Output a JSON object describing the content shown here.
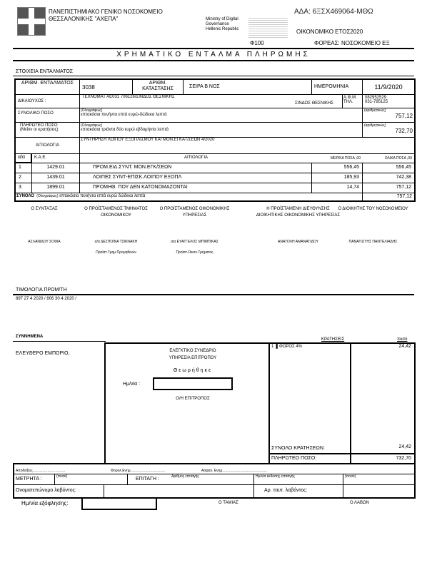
{
  "header": {
    "org_line1": "ΠΑΝΕΠΙΣΤΗΜΙΑΚΟ ΓΕΝΙΚΟ ΝΟΣΟΚΟΜΕΙΟ",
    "org_line2": "ΘΕΣΣΑΛΟΝΙΚΗΣ \"ΑΧΕΠΑ\"",
    "ministry": [
      "Ministry of Digital",
      "Governance",
      "Hellenic Republic"
    ],
    "ada": "ΑΔΑ: 6ΞΣΧ469064-ΜΘΩ",
    "fiscal_year": "ΟΙΚΟΝΟΜΙΚΟ ΕΤΟΣ2020",
    "phi": "Φ100",
    "agency": "ΦΟΡΕΑΣ: ΝΟΣΟΚΟΜΕΙΟ ΕΞ",
    "title": "ΧΡΗΜΑΤΙΚΟ ΕΝΤΑΛΜΑ ΠΛΗΡΩΜΗΣ",
    "section": "ΣΤΟΙΧΕΙΑ ΕΝΤΑΛΜΑΤΟΣ"
  },
  "order": {
    "num_label": "ΑΡΙΘΜ. ΕΝΤΑΛΜΑΤΟΣ",
    "num": "3038",
    "state_label": "ΑΡΙΘΜ. ΚΑΤΑΣΤΑΣΗΣ",
    "series": "ΣΕΙΡΑ Β ΝΟΣ",
    "date_label": "ΗΜΕΡΟΜΗΝΙΑ",
    "date": "11/9/2020",
    "beneficiary_label": "ΔΙΚΑΙΟΥΧΟΣ :",
    "beneficiary": "ΤΕΧΝΟΜΑΤ ΑΕ031 706126/ΣΙΝΔΟΣ ΘΕΣΝΙΚΗΣ",
    "beneficiary_city": "ΣΙΝΔΟΣ ΘΕΣΝΙΚΗΣ",
    "afm_label": "Α.Φ.Μ. ΤΗΛ.",
    "afm": "082952529",
    "phone": "031-795125",
    "total_label": "ΣΥΝΟΛΙΚΟ ΠΟΣΟ",
    "words_label": "(Ολογράφως)",
    "digits_label": "(αριθμητικώς)",
    "total_words": "επτακόσια πενήντα επτά ευρώ-δώδεκα λεπτά",
    "total": "757,12",
    "payable_label": "ΠΛΗΡΩΤΕΟ ΠΟΣΟ",
    "payable_sub": "(Μείον οι κρατήσεις)",
    "payable_words": "επτακόσια τριάντα δύο ευρώ εβδομήντα λεπτά",
    "payable": "732,70",
    "reason_label": "ΑΙΤΙΟΛΟΓΙΑ",
    "reason": "ΣΥΝΤΗΡΗΣΗ ΛΟΙΠΟΥ ΕΞΟΠΛΙΣΜΟΥ ΚΑΙ ΜΟΝ.ΕΓΚΑΤ/ΣΕΩΝ 4/2020"
  },
  "items": {
    "headers": [
      "α/α",
      "Κ.Α.Ε.",
      "ΑΙΤΙΟΛΟΓΙΑ",
      "ΜΕΡΙΚΑ ΠΟΣΑ ,00",
      "ΟΛΙΚΑ ΠΟΣΑ ,00"
    ],
    "rows": [
      [
        "1",
        "1429.01",
        "ΠΡΟΜ.ΕΙΔ.ΣΥΝΤ. ΜΟΝ.ΕΓΚ/ΣΕΩΝ",
        "556,45",
        "556,45"
      ],
      [
        "2",
        "1439.01",
        "ΛΟΙΠΕΣ ΣΥΝΤ-ΕΠΙΣΚ.ΛΟΙΠΟΥ ΕΞΟΠΛ",
        "185,93",
        "742,38"
      ],
      [
        "3",
        "1899.01",
        "ΠΡΟΜΗΘ. ΠΟΥ ΔΕΝ ΚΑΤΟΝΟΜΑΖΟΝΤΑΙ",
        "14,74",
        "757,12"
      ]
    ],
    "sum_label": "ΣΥΝΟΛΟ",
    "sum_words_label": "(Ολογράφως)",
    "sum_words": "επτακόσια πενήντα επτά ευρώ δώδεκα λεπτά",
    "sum": "757,12"
  },
  "signatures": [
    {
      "role": "Ο ΣΥΝΤΑΞΑΣ",
      "name": "ΑΣΛΑΝΙΔΟΥ ΣΟΦΙΑ",
      "sub": ""
    },
    {
      "role": "Ο ΠΡΟΪΣΤΑΜΕΝΟΣ ΤΜΗΜΑΤΟΣ ΟΙΚΟΝΟΜΙΚΟΥ",
      "name": "α/α ΔΕΣΠΟΙΝΑ ΤΣΙΚΝΑΚΗ",
      "sub": "Προϊστ.Τμημ.Προμηθειών"
    },
    {
      "role": "Ο ΠΡΟΪΣΤΑΜΕΝΟΣ ΟΙΚΟΝΟΜΙΚΗΣ ΥΠΗΡΕΣΙΑΣ",
      "name": "α/α ΕΥΑΓΓΕΛΟΣ ΜΠΙΜΠΙΚΑΣ",
      "sub": "Προϊστ.Οικον.Τμήματος"
    },
    {
      "role": "Η ΠΡΟΪΣΤΑΜΕΝΗ ΔΙΕΥΘΥΝΣΗΣ ΔΙΟΙΚΗΤΙΚΗΣ ΟΙΚΟΝΟΜΙΚΗΣ ΥΠΗΡΕΣΙΑΣ",
      "name": "ΑΝΑΤΟΛΗ ΑΜΑΝΑΤΙΔΟΥ",
      "sub": ""
    },
    {
      "role": "Ο ΔΙΟΙΚΗΤΗΣ ΤΟΥ ΝΟΣΟΚΟΜΕΙΟΥ",
      "name": "ΠΑΝΑΓΙΩΤΗΣ ΠΑΝΤΕΛΙΑΔΗΣ",
      "sub": ""
    }
  ],
  "invoices": {
    "label": "ΤΙΜΟΛΟΓΙΑ ΠΡΟΜ/ΤΗ",
    "value": "897 27 4 2020  / 806 30 4 2020  /"
  },
  "attachments": {
    "label": "ΣΥΝΝΗΜΕΝΑ",
    "value": "ΕΛΕΥΘΕΡΟ ΕΜΠΟΡΙΟ,"
  },
  "audit": {
    "line1": "ΕΛΕΓΚΤΙΚΟ ΣΥΝΕΔΡΙΟ",
    "line2": "ΥΠΗΡΕΣΙΑ ΕΠΙΤΡΟΠΟΥ",
    "approved": "Θεωρήθηκε",
    "date_label": "Ημ/νία :",
    "date_value": "",
    "commissioner": "Ο/Η ΕΠΙΤΡΟΠΟΣ"
  },
  "deductions": {
    "label": "ΚΡΑΤΗΣΕΙΣ",
    "amount_label": "ποσό",
    "rows": [
      [
        "1",
        "ΦΟΡΟΣ 4%",
        "24,42"
      ]
    ],
    "total_label": "ΣΥΝΟΛΟ ΚΡΑΤΗΣΕΩΝ:",
    "total": "24,42",
    "payable_label": "ΠΛΗΡΩΤΕΟ ΠΟΣΟ:",
    "payable": "732,70"
  },
  "payment": {
    "receipt": "Αποδείξεις.................................",
    "phi_insured": "Φορολ.Ενημ...................................",
    "insurance": "Ασφαλ. Ενημ.............................................",
    "cash_label": "ΜΕΤΡΗΤΑ :",
    "amount_small": "(ποσό)",
    "cheque_label": "ΕΠΙΤΑΓΗ :",
    "cheque_num": "Αριθμός επιταγής",
    "cheque_date": "Ημ/νία έκδοσης επιταγής",
    "amount_small2": "(ποσό)",
    "name_label": "Ονοματεπώνυμο λαβόντος:",
    "id_label": "Αρ. ταυτ. λαβόντος:",
    "paid_date_label": "Ημ/νία εξόφλησης:",
    "cashier": "Ο ΤΑΜΙΑΣ",
    "receiver": "Ο ΛΑΒΩΝ"
  }
}
